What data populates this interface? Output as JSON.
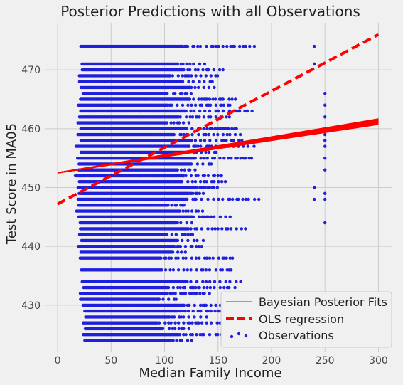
{
  "chart_data": {
    "type": "scatter",
    "title": "Posterior Predictions with all Observations",
    "xlabel": "Median Family Income",
    "ylabel": "Test Score in MA05",
    "xlim": [
      -12,
      313
    ],
    "ylim": [
      422,
      478
    ],
    "xticks": [
      0,
      50,
      100,
      150,
      200,
      250,
      300
    ],
    "yticks": [
      430,
      440,
      450,
      460,
      470
    ],
    "grid": true,
    "legend_position": "bottom-right",
    "colors": {
      "observations": "#1f1fdd",
      "fits": "#ff0000",
      "ols": "#ff0000",
      "background": "#f0f0f0",
      "grid": "#cbcbcb"
    },
    "observations": {
      "name": "Observations",
      "y_levels": [
        424,
        425,
        426,
        427,
        428,
        429,
        430,
        431,
        432,
        433,
        434,
        436,
        438,
        439,
        440,
        441,
        442,
        443,
        444,
        445,
        446,
        447,
        448,
        449,
        450,
        451,
        452,
        453,
        454,
        455,
        456,
        457,
        458,
        459,
        460,
        461,
        462,
        463,
        464,
        465,
        466,
        467,
        468,
        469,
        470,
        471,
        474
      ],
      "x_range": [
        16,
        193
      ],
      "outliers": [
        {
          "x": 240,
          "y": 474
        },
        {
          "x": 240,
          "y": 471
        },
        {
          "x": 240,
          "y": 450
        },
        {
          "x": 240,
          "y": 448
        },
        {
          "x": 250,
          "y": 466
        },
        {
          "x": 250,
          "y": 464
        },
        {
          "x": 250,
          "y": 462
        },
        {
          "x": 250,
          "y": 460
        },
        {
          "x": 250,
          "y": 459
        },
        {
          "x": 250,
          "y": 458
        },
        {
          "x": 250,
          "y": 457
        },
        {
          "x": 250,
          "y": 455
        },
        {
          "x": 250,
          "y": 453
        },
        {
          "x": 250,
          "y": 449
        },
        {
          "x": 250,
          "y": 448
        },
        {
          "x": 250,
          "y": 444
        }
      ]
    },
    "bayesian_fits": {
      "name": "Bayesian Posterior Fits",
      "intercept": 452.5,
      "slope_min": 0.0275,
      "slope_max": 0.0305,
      "x_range": [
        0,
        300
      ]
    },
    "ols": {
      "name": "OLS regression",
      "intercept": 447.2,
      "slope": 0.096,
      "x_range": [
        0,
        300
      ]
    }
  }
}
